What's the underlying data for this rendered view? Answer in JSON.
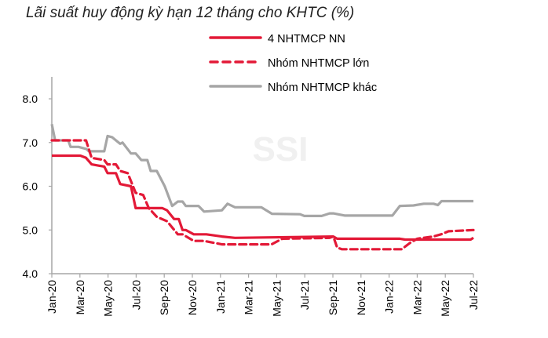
{
  "chart_data": {
    "type": "line",
    "title": "Lãi suất huy động kỳ hạn 12 tháng cho KHTC (%)",
    "xlabel": "",
    "ylabel": "",
    "xlim": [
      "2020-01-01",
      "2022-07-01"
    ],
    "ylim": [
      4.0,
      8.0
    ],
    "y_ticks": [
      "8.0",
      "7.0",
      "6.0",
      "5.0",
      "4.0"
    ],
    "y_tick_values": [
      8,
      7,
      6,
      5,
      4
    ],
    "x_ticks": [
      "Jan-20",
      "Mar-20",
      "May-20",
      "Jul-20",
      "Sep-20",
      "Nov-20",
      "Jan-21",
      "Mar-21",
      "May-21",
      "Jul-21",
      "Sep-21",
      "Nov-21",
      "Jan-22",
      "Mar-22",
      "May-22",
      "Jul-22"
    ],
    "x_tick_values": [
      "2020-01-01",
      "2020-03-01",
      "2020-05-01",
      "2020-07-01",
      "2020-09-01",
      "2020-11-01",
      "2021-01-01",
      "2021-03-01",
      "2021-05-01",
      "2021-07-01",
      "2021-09-01",
      "2021-11-01",
      "2022-01-01",
      "2022-03-01",
      "2022-05-01",
      "2022-07-01"
    ],
    "grid": false,
    "legend_position": "top-right",
    "watermark": "SSI",
    "series": [
      {
        "name": "4 NHTMCP NN",
        "color": "#e31937",
        "style": "solid",
        "x": [
          "2020-01-01",
          "2020-03-02",
          "2020-03-14",
          "2020-03-26",
          "2020-04-23",
          "2020-04-30",
          "2020-05-18",
          "2020-05-27",
          "2020-06-20",
          "2020-06-30",
          "2020-08-27",
          "2020-09-07",
          "2020-09-22",
          "2020-10-02",
          "2020-10-10",
          "2020-10-17",
          "2020-11-04",
          "2020-12-01",
          "2021-01-04",
          "2021-02-02",
          "2021-09-02",
          "2021-09-10",
          "2022-01-24",
          "2022-02-05",
          "2022-06-25",
          "2022-07-01"
        ],
        "y": [
          6.7,
          6.7,
          6.65,
          6.5,
          6.45,
          6.3,
          6.3,
          6.05,
          6.0,
          5.5,
          5.5,
          5.45,
          5.25,
          5.25,
          5.0,
          5.0,
          4.9,
          4.9,
          4.85,
          4.82,
          4.85,
          4.8,
          4.8,
          4.78,
          4.78,
          4.82
        ]
      },
      {
        "name": "Nhóm NHTMCP lớn",
        "color": "#e31937",
        "style": "dashed",
        "x": [
          "2020-01-01",
          "2020-03-14",
          "2020-03-20",
          "2020-03-26",
          "2020-04-23",
          "2020-04-30",
          "2020-05-18",
          "2020-05-27",
          "2020-06-13",
          "2020-06-30",
          "2020-07-16",
          "2020-07-28",
          "2020-08-15",
          "2020-09-07",
          "2020-09-30",
          "2020-10-10",
          "2020-11-04",
          "2020-11-26",
          "2021-01-04",
          "2021-04-20",
          "2021-05-13",
          "2021-08-24",
          "2021-09-02",
          "2021-09-10",
          "2021-09-20",
          "2022-01-28",
          "2022-02-15",
          "2022-03-01",
          "2022-04-05",
          "2022-04-22",
          "2022-05-08",
          "2022-07-01"
        ],
        "y": [
          7.05,
          7.05,
          6.85,
          6.65,
          6.6,
          6.5,
          6.5,
          6.35,
          6.3,
          5.85,
          5.8,
          5.5,
          5.3,
          5.2,
          4.9,
          4.9,
          4.75,
          4.75,
          4.67,
          4.67,
          4.8,
          4.82,
          4.85,
          4.6,
          4.56,
          4.56,
          4.7,
          4.8,
          4.85,
          4.9,
          4.97,
          5.0
        ]
      },
      {
        "name": "Nhóm NHTMCP khác",
        "color": "#a6a6a6",
        "style": "solid",
        "x": [
          "2020-01-01",
          "2020-01-08",
          "2020-02-06",
          "2020-02-11",
          "2020-02-28",
          "2020-03-15",
          "2020-03-20",
          "2020-04-23",
          "2020-04-30",
          "2020-05-10",
          "2020-05-18",
          "2020-05-27",
          "2020-06-02",
          "2020-06-20",
          "2020-06-30",
          "2020-07-12",
          "2020-07-25",
          "2020-08-02",
          "2020-08-15",
          "2020-09-02",
          "2020-09-18",
          "2020-09-30",
          "2020-10-10",
          "2020-10-17",
          "2020-11-14",
          "2020-11-26",
          "2021-01-04",
          "2021-01-16",
          "2021-02-02",
          "2021-03-28",
          "2021-04-21",
          "2021-06-21",
          "2021-06-30",
          "2021-08-07",
          "2021-08-24",
          "2021-09-02",
          "2021-09-27",
          "2022-01-08",
          "2022-01-24",
          "2022-02-23",
          "2022-03-15",
          "2022-04-06",
          "2022-04-15",
          "2022-04-23",
          "2022-07-01"
        ],
        "y": [
          7.42,
          7.05,
          7.05,
          6.9,
          6.9,
          6.85,
          6.8,
          6.8,
          7.15,
          7.12,
          7.05,
          6.97,
          7.0,
          6.75,
          6.75,
          6.6,
          6.6,
          6.35,
          6.35,
          6.0,
          5.55,
          5.65,
          5.65,
          5.55,
          5.55,
          5.42,
          5.45,
          5.6,
          5.52,
          5.52,
          5.37,
          5.36,
          5.32,
          5.32,
          5.38,
          5.38,
          5.33,
          5.33,
          5.55,
          5.56,
          5.6,
          5.6,
          5.57,
          5.66,
          5.66
        ]
      }
    ]
  }
}
